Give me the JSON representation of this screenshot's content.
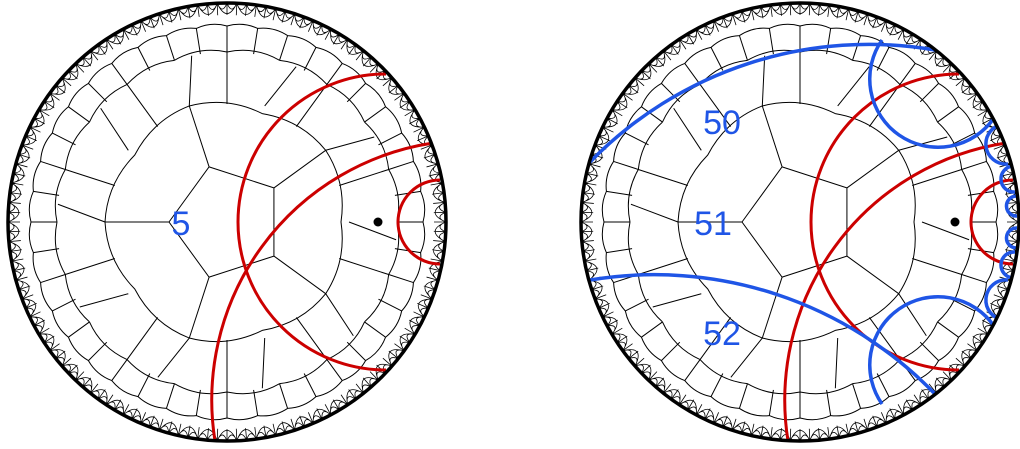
{
  "colors": {
    "red_geodesic": "#cc0000",
    "blue_geodesic": "#1f55e6",
    "label": "#1f55e6",
    "tessellation": "#000000"
  },
  "panels": [
    {
      "labels": [
        "5"
      ]
    },
    {
      "labels": [
        "50",
        "51",
        "52"
      ]
    }
  ]
}
